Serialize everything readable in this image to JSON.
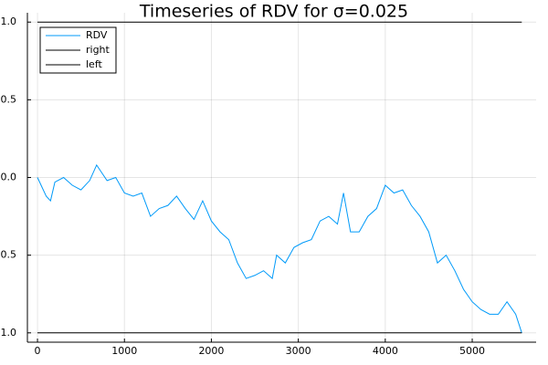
{
  "chart_data": {
    "type": "line",
    "title": "Timeseries of RDV for σ=0.025",
    "series": [
      {
        "name": "RDV",
        "color": "#009af9",
        "x": [
          0,
          100,
          150,
          200,
          300,
          400,
          500,
          600,
          680,
          800,
          900,
          1000,
          1100,
          1200,
          1300,
          1400,
          1500,
          1600,
          1700,
          1800,
          1900,
          2000,
          2100,
          2200,
          2300,
          2400,
          2500,
          2600,
          2700,
          2750,
          2850,
          2950,
          3050,
          3150,
          3250,
          3350,
          3450,
          3520,
          3600,
          3700,
          3800,
          3900,
          4000,
          4100,
          4200,
          4300,
          4400,
          4500,
          4600,
          4700,
          4800,
          4900,
          5000,
          5100,
          5200,
          5300,
          5400,
          5500,
          5570
        ],
        "values": [
          0.0,
          -0.12,
          -0.15,
          -0.03,
          0.0,
          -0.05,
          -0.08,
          -0.02,
          0.08,
          -0.02,
          0.0,
          -0.1,
          -0.12,
          -0.1,
          -0.25,
          -0.2,
          -0.18,
          -0.12,
          -0.2,
          -0.27,
          -0.15,
          -0.28,
          -0.35,
          -0.4,
          -0.55,
          -0.65,
          -0.63,
          -0.6,
          -0.65,
          -0.5,
          -0.55,
          -0.45,
          -0.42,
          -0.4,
          -0.28,
          -0.25,
          -0.3,
          -0.1,
          -0.35,
          -0.35,
          -0.25,
          -0.2,
          -0.05,
          -0.1,
          -0.08,
          -0.18,
          -0.25,
          -0.35,
          -0.55,
          -0.5,
          -0.6,
          -0.72,
          -0.8,
          -0.85,
          -0.88,
          -0.88,
          -0.8,
          -0.88,
          -1.0
        ]
      },
      {
        "name": "right",
        "color": "#000000",
        "x": [
          0,
          5570
        ],
        "values": [
          1,
          1
        ]
      },
      {
        "name": "left",
        "color": "#000000",
        "x": [
          0,
          5570
        ],
        "values": [
          -1,
          -1
        ]
      }
    ],
    "xlim": [
      -116,
      5735
    ],
    "ylim": [
      -1.06,
      1.06
    ],
    "xticks": [
      0,
      1000,
      2000,
      3000,
      4000,
      5000
    ],
    "yticks": [
      {
        "value": -1,
        "label": "-1.0"
      },
      {
        "value": -0.5,
        "label": "-0.5"
      },
      {
        "value": 0,
        "label": "0.0"
      },
      {
        "value": 0.5,
        "label": "0.5"
      },
      {
        "value": 1,
        "label": "1.0"
      }
    ],
    "grid": true,
    "legend": "top-left"
  }
}
